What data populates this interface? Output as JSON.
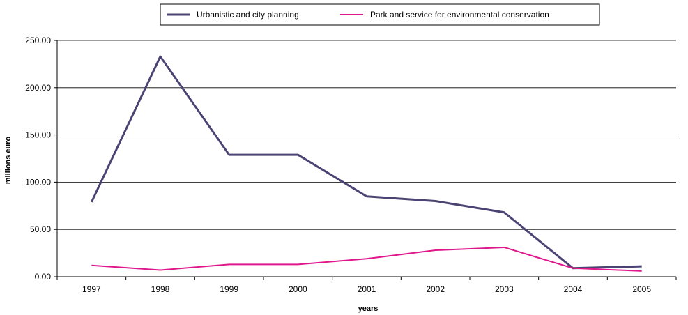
{
  "chart_data": {
    "type": "line",
    "xlabel": "years",
    "ylabel": "millions euro",
    "categories": [
      "1997",
      "1998",
      "1999",
      "2000",
      "2001",
      "2002",
      "2003",
      "2004",
      "2005"
    ],
    "ylim": [
      0,
      250
    ],
    "yticks": [
      "0.00",
      "50.00",
      "100.00",
      "150.00",
      "200.00",
      "250.00"
    ],
    "grid": true,
    "legend_position": "top",
    "series": [
      {
        "name": "Urbanistic and city planning",
        "color": "#4b4373",
        "values": [
          79,
          233,
          129,
          129,
          85,
          80,
          68,
          9,
          11
        ]
      },
      {
        "name": "Park and service for environmental conservation",
        "color": "#e0178c",
        "values": [
          12,
          7,
          13,
          13,
          19,
          28,
          31,
          9,
          6
        ]
      }
    ]
  }
}
